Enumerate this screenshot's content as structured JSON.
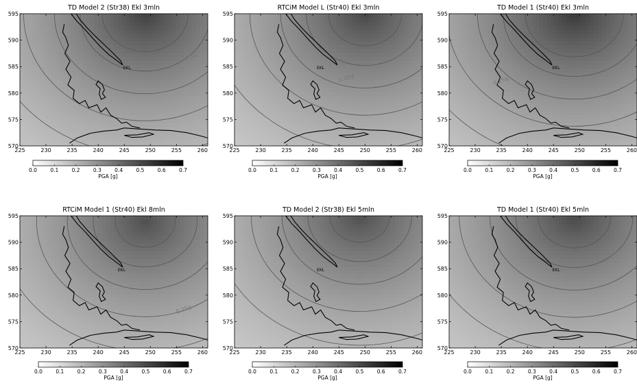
{
  "chart_data": [
    {
      "type": "heatmap",
      "title": "TD Model 2 (Str38) Ekl 3mln",
      "x_ticks": [
        225,
        230,
        235,
        240,
        245,
        250,
        255,
        260
      ],
      "y_ticks": [
        570,
        575,
        580,
        585,
        590,
        595
      ],
      "xlim": [
        225,
        261
      ],
      "ylim": [
        570,
        595
      ],
      "grid": false,
      "epicenter": [
        249,
        595
      ],
      "peak_pga": 0.5,
      "contours": [
        {
          "level": 0.15,
          "label": "",
          "x": 0,
          "y": 0
        },
        {
          "level": 0.2,
          "label": "",
          "x": 0,
          "y": 0
        },
        {
          "level": 0.25,
          "label": "0.25g",
          "x": 257.5,
          "y": 586.5
        },
        {
          "level": 0.3,
          "label": "",
          "x": 0,
          "y": 0
        },
        {
          "level": 0.35,
          "label": "",
          "x": 0,
          "y": 0
        },
        {
          "level": 0.4,
          "label": "",
          "x": 0,
          "y": 0
        }
      ],
      "site_label": "EKL",
      "site_xy": [
        245.5,
        584.5
      ],
      "colorbar": {
        "label": "PGA   [g]",
        "ticks": [
          "0.0",
          "0.1",
          "0.2",
          "0.3",
          "0.4",
          "0.5",
          "0.6",
          "0.7"
        ],
        "min": 0,
        "max": 0.7
      }
    },
    {
      "type": "heatmap",
      "title": "RTCiM Model L (Str40) Ekl 3mln",
      "x_ticks": [
        225,
        230,
        235,
        240,
        245,
        250,
        255,
        260
      ],
      "y_ticks": [
        570,
        575,
        580,
        585,
        590,
        595
      ],
      "xlim": [
        225,
        261
      ],
      "ylim": [
        570,
        595
      ],
      "grid": false,
      "epicenter": [
        250,
        595
      ],
      "peak_pga": 0.48,
      "contours": [
        {
          "level": 0.15,
          "label": "",
          "x": 0,
          "y": 0
        },
        {
          "level": 0.2,
          "label": "",
          "x": 0,
          "y": 0
        },
        {
          "level": 0.25,
          "label": "",
          "x": 0,
          "y": 0
        },
        {
          "level": 0.3,
          "label": "",
          "x": 0,
          "y": 0
        },
        {
          "level": 0.35,
          "label": "0.35g",
          "x": 246.5,
          "y": 582.5
        },
        {
          "level": 0.4,
          "label": "",
          "x": 0,
          "y": 0
        }
      ],
      "site_label": "EKL",
      "site_xy": [
        241.5,
        584.5
      ],
      "colorbar": {
        "label": "PGA   [g]",
        "ticks": [
          "0.0",
          "0.1",
          "0.2",
          "0.3",
          "0.4",
          "0.5",
          "0.6",
          "0.7"
        ],
        "min": 0,
        "max": 0.7
      }
    },
    {
      "type": "heatmap",
      "title": "TD Model 1 (Str40) Ekl 3mln",
      "x_ticks": [
        225,
        230,
        235,
        240,
        245,
        250,
        255,
        260
      ],
      "y_ticks": [
        570,
        575,
        580,
        585,
        590,
        595
      ],
      "xlim": [
        225,
        261
      ],
      "ylim": [
        570,
        595
      ],
      "grid": false,
      "epicenter": [
        249,
        595
      ],
      "peak_pga": 0.52,
      "contours": [
        {
          "level": 0.15,
          "label": "",
          "x": 0,
          "y": 0
        },
        {
          "level": 0.2,
          "label": "",
          "x": 0,
          "y": 0
        },
        {
          "level": 0.25,
          "label": "0.25g",
          "x": 235,
          "y": 582
        },
        {
          "level": 0.3,
          "label": "",
          "x": 0,
          "y": 0
        },
        {
          "level": 0.35,
          "label": "",
          "x": 0,
          "y": 0
        },
        {
          "level": 0.4,
          "label": "",
          "x": 0,
          "y": 0
        }
      ],
      "site_label": "EKL",
      "site_xy": [
        245.5,
        584.5
      ],
      "colorbar": {
        "label": "PGA   [g]",
        "ticks": [
          "0.0",
          "0.1",
          "0.2",
          "0.3",
          "0.4",
          "0.5",
          "0.6",
          "0.7"
        ],
        "min": 0,
        "max": 0.7
      }
    },
    {
      "type": "heatmap",
      "title": "RTCiM Model 1 (Str40) Ekl 8mln",
      "x_ticks": [
        225,
        230,
        235,
        240,
        245,
        250,
        255,
        260
      ],
      "y_ticks": [
        570,
        575,
        580,
        585,
        590,
        595
      ],
      "xlim": [
        225,
        261
      ],
      "ylim": [
        570,
        595
      ],
      "grid": false,
      "epicenter": [
        249,
        594
      ],
      "peak_pga": 0.46,
      "contours": [
        {
          "level": 0.15,
          "label": "",
          "x": 0,
          "y": 0
        },
        {
          "level": 0.2,
          "label": "",
          "x": 0,
          "y": 0
        },
        {
          "level": 0.25,
          "label": "0.25g",
          "x": 256.5,
          "y": 577
        },
        {
          "level": 0.3,
          "label": "",
          "x": 0,
          "y": 0
        },
        {
          "level": 0.35,
          "label": "",
          "x": 0,
          "y": 0
        },
        {
          "level": 0.4,
          "label": "",
          "x": 0,
          "y": 0
        }
      ],
      "site_label": "EKL",
      "site_xy": [
        244.5,
        584.5
      ],
      "colorbar": {
        "label": "PGA   [g]",
        "ticks": [
          "0.0",
          "0.1",
          "0.2",
          "0.3",
          "0.4",
          "0.5",
          "0.6",
          "0.7"
        ],
        "min": 0,
        "max": 0.7
      }
    },
    {
      "type": "heatmap",
      "title": "TD Model 2 (Str38) Ekl 5mln",
      "x_ticks": [
        225,
        230,
        235,
        240,
        245,
        250,
        255,
        260
      ],
      "y_ticks": [
        570,
        575,
        580,
        585,
        590,
        595
      ],
      "xlim": [
        225,
        261
      ],
      "ylim": [
        570,
        595
      ],
      "grid": false,
      "epicenter": [
        249,
        595
      ],
      "peak_pga": 0.46,
      "contours": [
        {
          "level": 0.15,
          "label": "",
          "x": 0,
          "y": 0
        },
        {
          "level": 0.2,
          "label": "",
          "x": 0,
          "y": 0
        },
        {
          "level": 0.25,
          "label": "",
          "x": 0,
          "y": 0
        },
        {
          "level": 0.3,
          "label": "",
          "x": 0,
          "y": 0
        },
        {
          "level": 0.35,
          "label": "",
          "x": 0,
          "y": 0
        },
        {
          "level": 0.4,
          "label": "",
          "x": 0,
          "y": 0
        }
      ],
      "site_label": "EKL",
      "site_xy": [
        241.5,
        584.5
      ],
      "colorbar": {
        "label": "PGA   [g]",
        "ticks": [
          "0.0",
          "0.1",
          "0.2",
          "0.3",
          "0.4",
          "0.5",
          "0.6",
          "0.7"
        ],
        "min": 0,
        "max": 0.7
      }
    },
    {
      "type": "heatmap",
      "title": "TD Model 1 (Str40) Ekl 5mln",
      "x_ticks": [
        225,
        230,
        235,
        240,
        245,
        250,
        255,
        260
      ],
      "y_ticks": [
        570,
        575,
        580,
        585,
        590,
        595
      ],
      "xlim": [
        225,
        261
      ],
      "ylim": [
        570,
        595
      ],
      "grid": false,
      "epicenter": [
        249,
        595
      ],
      "peak_pga": 0.48,
      "contours": [
        {
          "level": 0.15,
          "label": "",
          "x": 0,
          "y": 0
        },
        {
          "level": 0.2,
          "label": "",
          "x": 0,
          "y": 0
        },
        {
          "level": 0.25,
          "label": "",
          "x": 0,
          "y": 0
        },
        {
          "level": 0.3,
          "label": "",
          "x": 0,
          "y": 0
        },
        {
          "level": 0.35,
          "label": "",
          "x": 0,
          "y": 0
        },
        {
          "level": 0.4,
          "label": "",
          "x": 0,
          "y": 0
        }
      ],
      "site_label": "EKL",
      "site_xy": [
        245.5,
        584.5
      ],
      "colorbar": {
        "label": "PGA   [g]",
        "ticks": [
          "0.0",
          "0.1",
          "0.2",
          "0.3",
          "0.4",
          "0.5",
          "0.6",
          "0.7"
        ],
        "min": 0,
        "max": 0.7
      }
    }
  ],
  "coastline_mainland": [
    [
      234.5,
      570.5
    ],
    [
      236,
      571.5
    ],
    [
      238.5,
      572.4
    ],
    [
      241,
      572.8
    ],
    [
      243.5,
      573.0
    ],
    [
      245,
      573.4
    ],
    [
      248,
      573.2
    ],
    [
      251,
      573.0
    ],
    [
      254,
      572.9
    ],
    [
      257,
      572.5
    ],
    [
      260,
      571.8
    ],
    [
      261,
      571.5
    ]
  ],
  "coastline_peninsula": [
    [
      233.5,
      593
    ],
    [
      233.2,
      591.5
    ],
    [
      233.8,
      590.5
    ],
    [
      234.3,
      589
    ],
    [
      233.6,
      587.5
    ],
    [
      234.6,
      586
    ],
    [
      233.8,
      584.5
    ],
    [
      234.8,
      583
    ],
    [
      234.2,
      581.5
    ],
    [
      235.4,
      580.5
    ],
    [
      235.2,
      579
    ],
    [
      236.4,
      578
    ],
    [
      237.5,
      578.6
    ],
    [
      238.2,
      577.2
    ],
    [
      239.8,
      577.8
    ],
    [
      240.5,
      576.4
    ],
    [
      241.5,
      577.2
    ],
    [
      242.4,
      575.8
    ],
    [
      243.5,
      575.2
    ],
    [
      244.5,
      574.3
    ],
    [
      245.4,
      574.5
    ],
    [
      246.5,
      573.7
    ],
    [
      248,
      573.4
    ]
  ],
  "coastline_islandA": [
    [
      234.8,
      595
    ],
    [
      236,
      593.5
    ],
    [
      237.5,
      592
    ],
    [
      239,
      590.3
    ],
    [
      240.5,
      588.7
    ],
    [
      242,
      587.3
    ],
    [
      243.5,
      586.2
    ],
    [
      244.7,
      585.3
    ],
    [
      244.3,
      586.1
    ],
    [
      242.8,
      587.6
    ],
    [
      241.2,
      589.1
    ],
    [
      239.5,
      590.7
    ],
    [
      238,
      592.2
    ],
    [
      236.5,
      593.9
    ],
    [
      235.8,
      595
    ]
  ],
  "coastline_islandB": [
    [
      240,
      582.3
    ],
    [
      240.8,
      581.6
    ],
    [
      241.2,
      580.6
    ],
    [
      240.8,
      579.9
    ],
    [
      241.4,
      579.2
    ],
    [
      240.6,
      578.8
    ],
    [
      240.2,
      579.8
    ],
    [
      240.4,
      580.8
    ],
    [
      239.6,
      581.6
    ]
  ],
  "coastline_islandC": [
    [
      245,
      572.0
    ],
    [
      247.5,
      572.1
    ],
    [
      249.8,
      572.5
    ],
    [
      250.6,
      572.2
    ],
    [
      248.5,
      571.7
    ],
    [
      246.5,
      571.6
    ]
  ]
}
